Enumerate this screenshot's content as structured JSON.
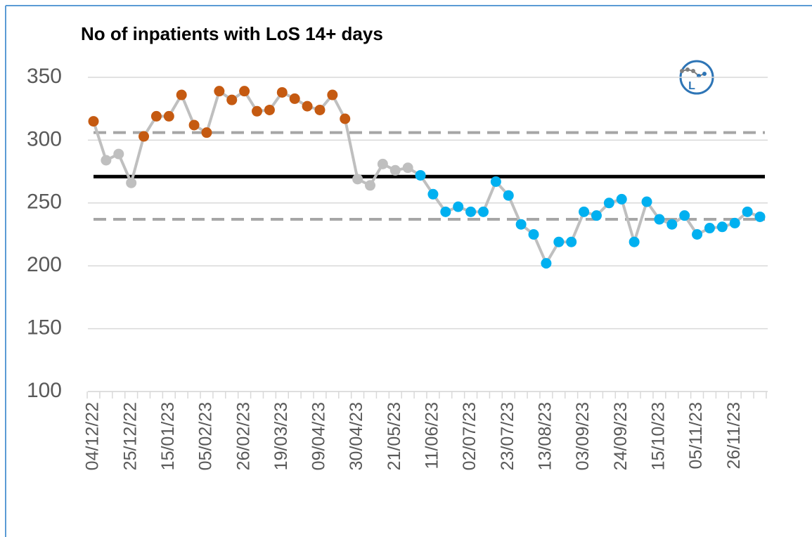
{
  "chart_data": {
    "type": "line",
    "title": "No of inpatients with LoS 14+ days",
    "categories": [
      "04/12/22",
      null,
      null,
      "25/12/22",
      null,
      null,
      "15/01/23",
      null,
      null,
      "05/02/23",
      null,
      null,
      "26/02/23",
      null,
      null,
      "19/03/23",
      null,
      null,
      "09/04/23",
      null,
      null,
      "30/04/23",
      null,
      null,
      "21/05/23",
      null,
      null,
      "11/06/23",
      null,
      null,
      "02/07/23",
      null,
      null,
      "23/07/23",
      null,
      null,
      "13/08/23",
      null,
      null,
      "03/09/23",
      null,
      null,
      "24/09/23",
      null,
      null,
      "15/10/23",
      null,
      null,
      "05/11/23",
      null,
      null,
      "26/11/23",
      null,
      null
    ],
    "series": [
      {
        "color": "#bfbfbf",
        "values": [
          315,
          284,
          289,
          266,
          303,
          319,
          319,
          336,
          312,
          306,
          339,
          332,
          339,
          323,
          324,
          338,
          333,
          327,
          324,
          336,
          317,
          269,
          264,
          281,
          276,
          278,
          272,
          257,
          243,
          247,
          243,
          243,
          267,
          256,
          233,
          225,
          202,
          219,
          219,
          243,
          240,
          250,
          253,
          219,
          251,
          237,
          233,
          240,
          225,
          230,
          231,
          234,
          243,
          239
        ],
        "point_colors": [
          "#c55a11",
          "#bfbfbf",
          "#bfbfbf",
          "#bfbfbf",
          "#c55a11",
          "#c55a11",
          "#c55a11",
          "#c55a11",
          "#c55a11",
          "#c55a11",
          "#c55a11",
          "#c55a11",
          "#c55a11",
          "#c55a11",
          "#c55a11",
          "#c55a11",
          "#c55a11",
          "#c55a11",
          "#c55a11",
          "#c55a11",
          "#c55a11",
          "#bfbfbf",
          "#bfbfbf",
          "#bfbfbf",
          "#bfbfbf",
          "#bfbfbf",
          "#00b0f0",
          "#00b0f0",
          "#00b0f0",
          "#00b0f0",
          "#00b0f0",
          "#00b0f0",
          "#00b0f0",
          "#00b0f0",
          "#00b0f0",
          "#00b0f0",
          "#00b0f0",
          "#00b0f0",
          "#00b0f0",
          "#00b0f0",
          "#00b0f0",
          "#00b0f0",
          "#00b0f0",
          "#00b0f0",
          "#00b0f0",
          "#00b0f0",
          "#00b0f0",
          "#00b0f0",
          "#00b0f0",
          "#00b0f0",
          "#00b0f0",
          "#00b0f0",
          "#00b0f0",
          "#00b0f0"
        ]
      }
    ],
    "reference_lines": [
      {
        "value": 306,
        "color": "#a6a6a6",
        "dashed": true
      },
      {
        "value": 271,
        "color": "#000000",
        "dashed": false
      },
      {
        "value": 237,
        "color": "#a6a6a6",
        "dashed": true
      }
    ],
    "ylim": [
      100,
      350
    ],
    "yticks": [
      100,
      150,
      200,
      250,
      300,
      350
    ],
    "grid": true
  }
}
